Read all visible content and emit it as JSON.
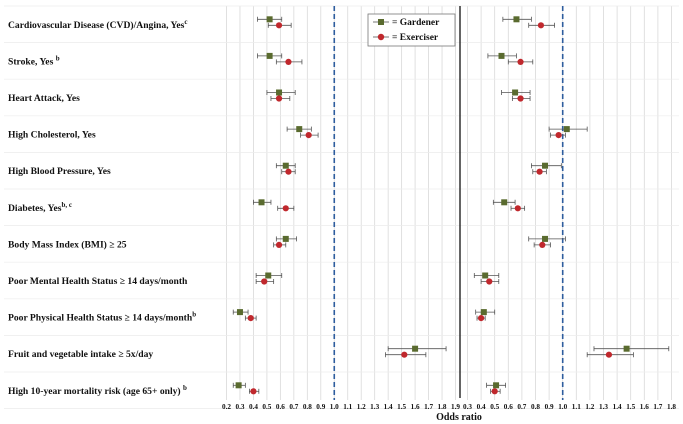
{
  "chart_data": {
    "type": "forest",
    "xlabel": "Odds ratio",
    "x_ticks": [
      "0.2",
      "0.3",
      "0.4",
      "0.5",
      "0.6",
      "0.7",
      "0.8",
      "0.9",
      "1.0",
      "1.1",
      "1.2",
      "1.3",
      "1.4",
      "1.5",
      "1.6",
      "1.7",
      "1.8",
      "1.9"
    ],
    "x_ticks_right": [
      "0.3",
      "0.4",
      "0.5",
      "0.6",
      "0.7",
      "0.8",
      "0.9",
      "1.0",
      "1.1",
      "1.2",
      "1.3",
      "1.4",
      "1.5",
      "1.6",
      "1.7",
      "1.8"
    ],
    "xlim": [
      0.2,
      1.9
    ],
    "xlim_right": [
      0.3,
      1.8
    ],
    "reference_line": 1.0,
    "colors": {
      "gardener": "#5a6b2f",
      "exerciser": "#c0282d",
      "reference": "#2e5d9e",
      "grid": "#d9d9d9"
    },
    "legend": [
      {
        "name": "Gardener",
        "label": "= Gardener",
        "marker": "square"
      },
      {
        "name": "Exerciser",
        "label": "= Exerciser",
        "marker": "circle"
      }
    ],
    "rows": [
      {
        "label": "Cardiovascular Disease (CVD)/Angina, Yes",
        "sup": "c"
      },
      {
        "label": "Stroke, Yes ",
        "sup": "b"
      },
      {
        "label": "Heart Attack, Yes",
        "sup": ""
      },
      {
        "label": "High Cholesterol, Yes",
        "sup": ""
      },
      {
        "label": "High Blood Pressure, Yes",
        "sup": ""
      },
      {
        "label": "Diabetes, Yes",
        "sup": "b, c"
      },
      {
        "label": "Body Mass Index (BMI) ≥ 25",
        "sup": ""
      },
      {
        "label": "Poor Mental Health Status ≥ 14 days/month",
        "sup": ""
      },
      {
        "label": "Poor Physical Health Status ≥ 14 days/month",
        "sup": "b"
      },
      {
        "label": "Fruit and vegetable intake ≥ 5x/day",
        "sup": ""
      },
      {
        "label": "High 10-year mortality risk (age 65+ only) ",
        "sup": "b"
      }
    ],
    "panels": [
      {
        "gardener": [
          {
            "or": 0.52,
            "lo": 0.43,
            "hi": 0.61
          },
          {
            "or": 0.52,
            "lo": 0.43,
            "hi": 0.61
          },
          {
            "or": 0.59,
            "lo": 0.5,
            "hi": 0.71
          },
          {
            "or": 0.74,
            "lo": 0.65,
            "hi": 0.83
          },
          {
            "or": 0.64,
            "lo": 0.57,
            "hi": 0.71
          },
          {
            "or": 0.46,
            "lo": 0.4,
            "hi": 0.53
          },
          {
            "or": 0.64,
            "lo": 0.57,
            "hi": 0.72
          },
          {
            "or": 0.51,
            "lo": 0.42,
            "hi": 0.61
          },
          {
            "or": 0.3,
            "lo": 0.25,
            "hi": 0.36
          },
          {
            "or": 1.6,
            "lo": 1.4,
            "hi": 1.83
          },
          {
            "or": 0.29,
            "lo": 0.25,
            "hi": 0.34
          }
        ],
        "exerciser": [
          {
            "or": 0.59,
            "lo": 0.51,
            "hi": 0.68
          },
          {
            "or": 0.66,
            "lo": 0.57,
            "hi": 0.76
          },
          {
            "or": 0.59,
            "lo": 0.53,
            "hi": 0.67
          },
          {
            "or": 0.81,
            "lo": 0.75,
            "hi": 0.88
          },
          {
            "or": 0.66,
            "lo": 0.61,
            "hi": 0.71
          },
          {
            "or": 0.64,
            "lo": 0.58,
            "hi": 0.7
          },
          {
            "or": 0.59,
            "lo": 0.55,
            "hi": 0.64
          },
          {
            "or": 0.48,
            "lo": 0.42,
            "hi": 0.55
          },
          {
            "or": 0.38,
            "lo": 0.34,
            "hi": 0.42
          },
          {
            "or": 1.52,
            "lo": 1.38,
            "hi": 1.68
          },
          {
            "or": 0.4,
            "lo": 0.37,
            "hi": 0.44
          }
        ]
      },
      {
        "gardener": [
          {
            "or": 0.66,
            "lo": 0.56,
            "hi": 0.77
          },
          {
            "or": 0.55,
            "lo": 0.45,
            "hi": 0.66
          },
          {
            "or": 0.65,
            "lo": 0.55,
            "hi": 0.76
          },
          {
            "or": 1.03,
            "lo": 0.9,
            "hi": 1.18
          },
          {
            "or": 0.87,
            "lo": 0.77,
            "hi": 0.99
          },
          {
            "or": 0.57,
            "lo": 0.49,
            "hi": 0.65
          },
          {
            "or": 0.87,
            "lo": 0.75,
            "hi": 1.02
          },
          {
            "or": 0.43,
            "lo": 0.35,
            "hi": 0.53
          },
          {
            "or": 0.42,
            "lo": 0.36,
            "hi": 0.5
          },
          {
            "or": 1.47,
            "lo": 1.23,
            "hi": 1.78
          },
          {
            "or": 0.51,
            "lo": 0.44,
            "hi": 0.58
          }
        ],
        "exerciser": [
          {
            "or": 0.84,
            "lo": 0.75,
            "hi": 0.94
          },
          {
            "or": 0.69,
            "lo": 0.6,
            "hi": 0.78
          },
          {
            "or": 0.69,
            "lo": 0.63,
            "hi": 0.76
          },
          {
            "or": 0.97,
            "lo": 0.91,
            "hi": 1.02
          },
          {
            "or": 0.83,
            "lo": 0.78,
            "hi": 0.88
          },
          {
            "or": 0.67,
            "lo": 0.62,
            "hi": 0.72
          },
          {
            "or": 0.85,
            "lo": 0.79,
            "hi": 0.91
          },
          {
            "or": 0.46,
            "lo": 0.4,
            "hi": 0.53
          },
          {
            "or": 0.4,
            "lo": 0.37,
            "hi": 0.43
          },
          {
            "or": 1.34,
            "lo": 1.18,
            "hi": 1.52
          },
          {
            "or": 0.5,
            "lo": 0.47,
            "hi": 0.54
          }
        ]
      }
    ]
  }
}
